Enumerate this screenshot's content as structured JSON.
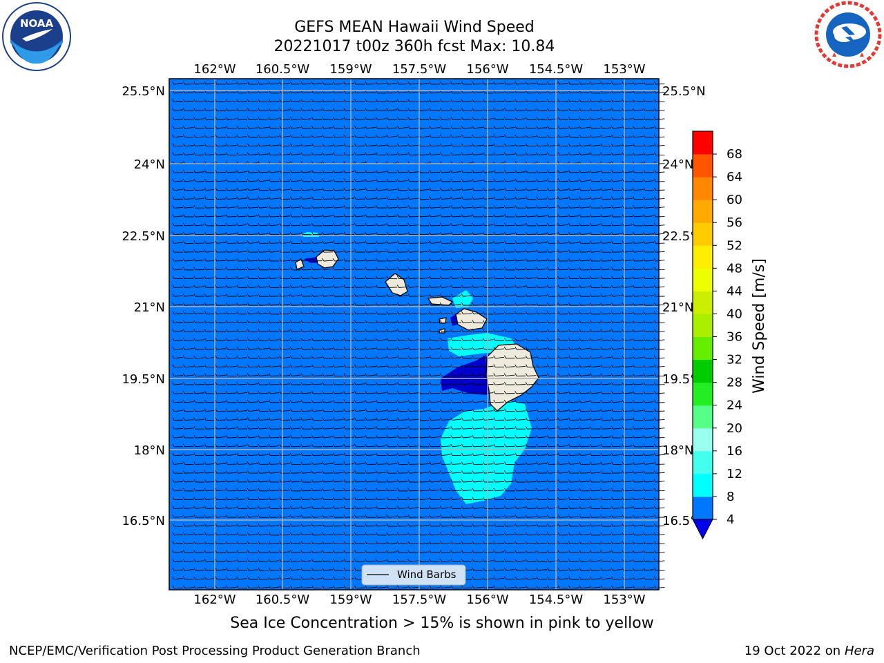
{
  "title": {
    "line1": "GEFS MEAN Hawaii Wind Speed",
    "line2": "20221017 t00z 360h fcst   Max: 10.84"
  },
  "axes": {
    "lon_ticks": [
      "162°W",
      "160.5°W",
      "159°W",
      "157.5°W",
      "156°W",
      "154.5°W",
      "153°W"
    ],
    "lat_ticks": [
      "25.5°N",
      "24°N",
      "22.5°N",
      "21°N",
      "19.5°N",
      "18°N",
      "16.5°N"
    ]
  },
  "legend": {
    "wind_barbs_label": "Wind Barbs"
  },
  "colorbar": {
    "label": "Wind Speed [m/s]",
    "ticks": [
      "4",
      "8",
      "12",
      "16",
      "20",
      "24",
      "28",
      "32",
      "36",
      "40",
      "44",
      "48",
      "52",
      "56",
      "60",
      "64",
      "68"
    ],
    "colors": [
      "#0077ff",
      "#00ffff",
      "#44ffee",
      "#99ffee",
      "#55ff88",
      "#22ee22",
      "#00cc00",
      "#66ee00",
      "#aaee00",
      "#ccee00",
      "#eeff00",
      "#ffee00",
      "#ffcc00",
      "#ffaa00",
      "#ff8800",
      "#ff5500",
      "#ff2200",
      "#ff0000"
    ],
    "extend_color": "#0000ee"
  },
  "map": {
    "ocean_color": "#0077ff",
    "land_color": "#eeeadc",
    "high_wind_color": "#00ffff",
    "low_wind_color": "#0000cc"
  },
  "note": "Sea Ice Concentration > 15% is shown in pink to yellow",
  "footer": {
    "left": "NCEP/EMC/Verification Post Processing Product Generation Branch",
    "right_prefix": "19 Oct 2022 on ",
    "right_italic": "Hera"
  },
  "logos": {
    "noaa_text": "NOAA",
    "noaa_ring_text": "NATIONAL OCEANIC AND ATMOSPHERIC ADMINISTRATION · U.S. DEPARTMENT OF COMMERCE",
    "nws_ring_text": "NATIONAL WEATHER SERVICE"
  }
}
